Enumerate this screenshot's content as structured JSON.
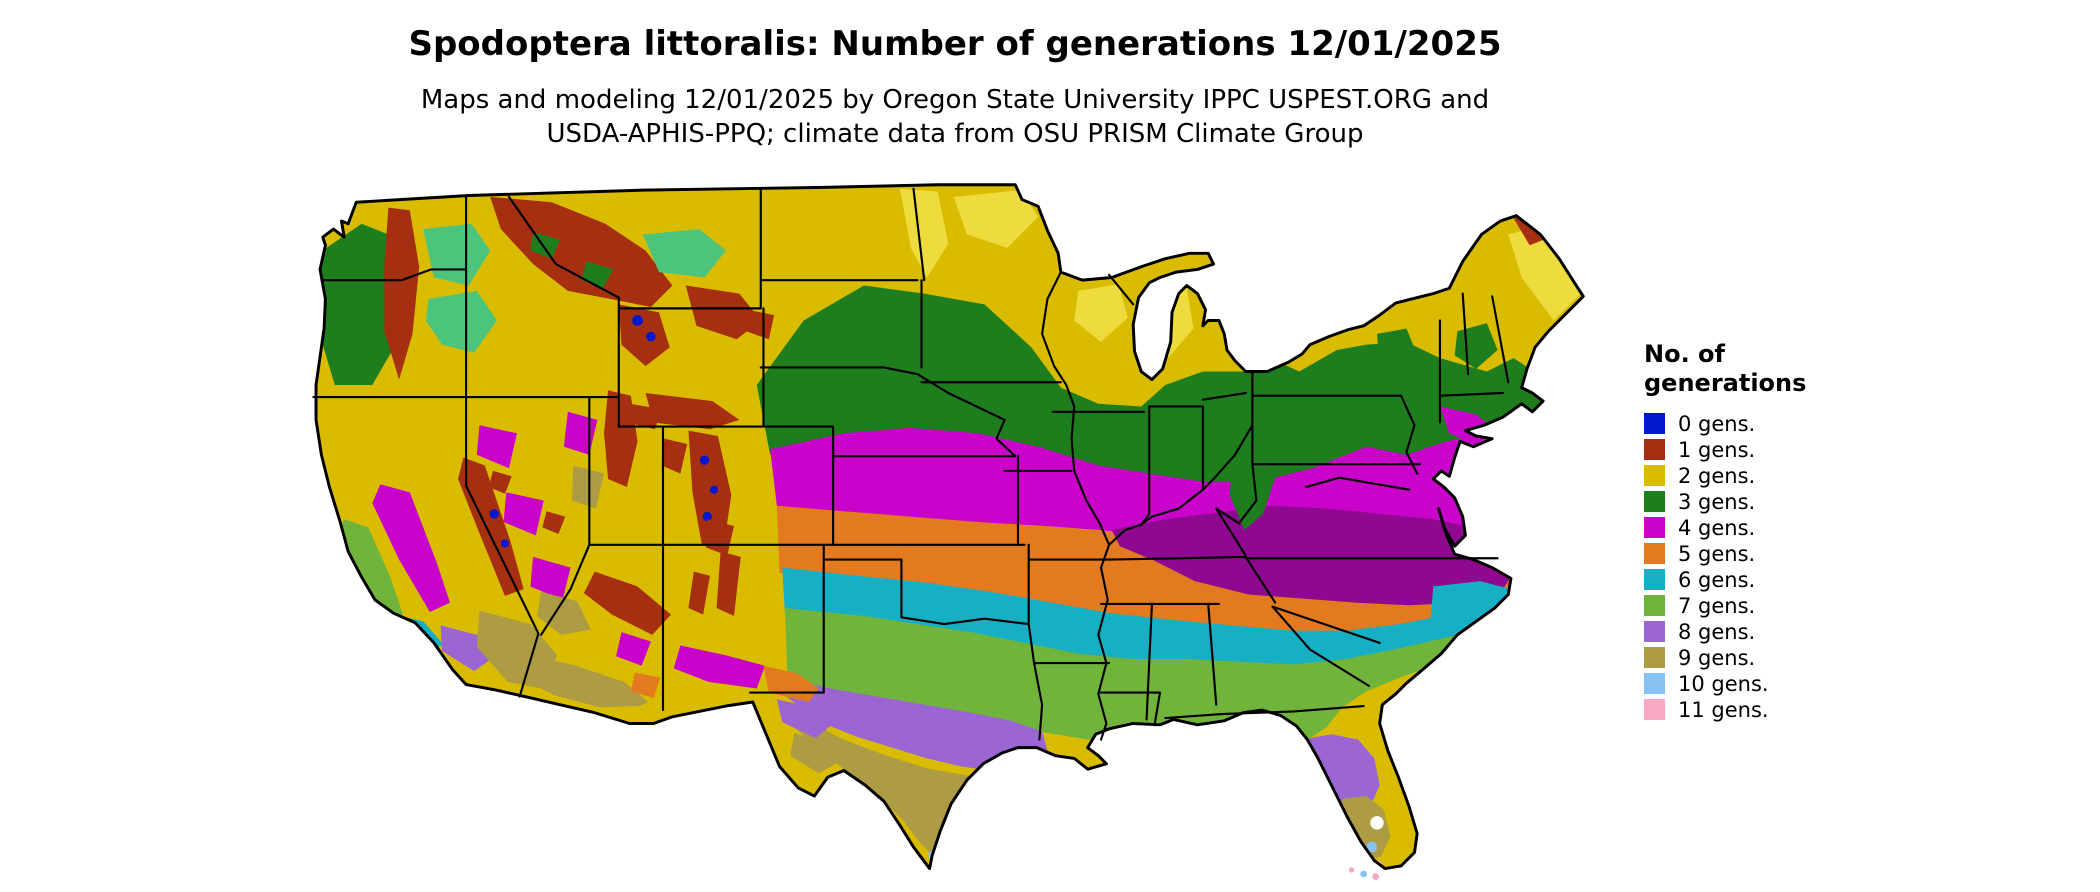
{
  "header": {
    "title": "Spodoptera littoralis: Number of generations 12/01/2025",
    "subtitle1": "Maps and modeling 12/01/2025 by Oregon State University IPPC USPEST.ORG and",
    "subtitle2": "USDA-APHIS-PPQ; climate data from OSU PRISM Climate Group"
  },
  "legend": {
    "title1": "No. of",
    "title2": "generations",
    "items": [
      {
        "gens": 0,
        "label": "0 gens.",
        "color": "#0018CE"
      },
      {
        "gens": 1,
        "label": "1 gens.",
        "color": "#A52F10"
      },
      {
        "gens": 2,
        "label": "2 gens.",
        "color": "#D9BC00"
      },
      {
        "gens": 3,
        "label": "3 gens.",
        "color": "#1E7E1E"
      },
      {
        "gens": 4,
        "label": "4 gens.",
        "color": "#C903C9"
      },
      {
        "gens": 5,
        "label": "5 gens.",
        "color": "#E37A1F"
      },
      {
        "gens": 6,
        "label": "6 gens.",
        "color": "#16AFC4"
      },
      {
        "gens": 7,
        "label": "7 gens.",
        "color": "#70B43C"
      },
      {
        "gens": 8,
        "label": "8 gens.",
        "color": "#9B66D4"
      },
      {
        "gens": 9,
        "label": "9 gens.",
        "color": "#AD9C44"
      },
      {
        "gens": 10,
        "label": "10 gens.",
        "color": "#87C3F2"
      },
      {
        "gens": 11,
        "label": "11 gens.",
        "color": "#F9A8C2"
      }
    ]
  }
}
